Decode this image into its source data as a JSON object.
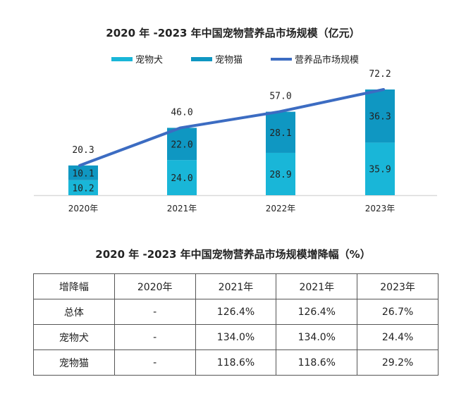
{
  "chart_data": {
    "type": "bar",
    "stacked": true,
    "title": "2020 年 -2023 年中国宠物营养品市场规模（亿元）",
    "categories": [
      "2020年",
      "2021年",
      "2022年",
      "2023年"
    ],
    "series": [
      {
        "name": "宠物犬",
        "kind": "bar",
        "color": "#19b6d8",
        "values": [
          10.2,
          24.0,
          28.9,
          35.9
        ]
      },
      {
        "name": "宠物猫",
        "kind": "bar",
        "color": "#0f97c2",
        "values": [
          10.1,
          22.0,
          28.1,
          36.3
        ]
      },
      {
        "name": "营养品市场规模",
        "kind": "line",
        "color": "#3c6cc2",
        "values": [
          20.3,
          46.0,
          57.0,
          72.2
        ]
      }
    ],
    "total_labels": [
      "20.3",
      "46.0",
      "57.0",
      "72.2"
    ],
    "dog_labels": [
      "10.2",
      "24.0",
      "28.9",
      "35.9"
    ],
    "cat_labels": [
      "10.1",
      "22.0",
      "28.1",
      "36.3"
    ],
    "xlabel": "",
    "ylabel": "",
    "ylim": [
      0,
      80
    ],
    "grid": false,
    "legend": "top-center"
  },
  "table": {
    "title": "2020 年 -2023 年中国宠物营养品市场规模增降幅（%）",
    "headers": [
      "增降幅",
      "2020年",
      "2021年",
      "2021年",
      "2023年"
    ],
    "rows": [
      [
        "总体",
        "-",
        "126.4%",
        "126.4%",
        "26.7%"
      ],
      [
        "宠物犬",
        "-",
        "134.0%",
        "134.0%",
        "24.4%"
      ],
      [
        "宠物猫",
        "-",
        "118.6%",
        "118.6%",
        "29.2%"
      ]
    ]
  }
}
